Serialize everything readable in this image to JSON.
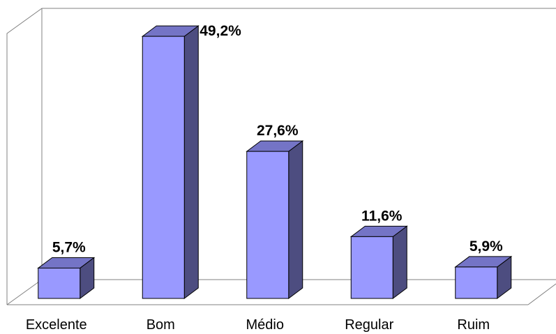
{
  "chart_data": {
    "type": "bar",
    "style": "3d-column",
    "title": "",
    "xlabel": "",
    "ylabel": "",
    "categories": [
      "Excelente",
      "Bom",
      "Médio",
      "Regular",
      "Ruim"
    ],
    "values": [
      5.7,
      49.2,
      27.6,
      11.6,
      5.9
    ],
    "data_labels": [
      "5,7%",
      "49,2%",
      "27,6%",
      "11,6%",
      "5,9%"
    ],
    "unit": "%",
    "ylim": [
      0,
      50
    ],
    "grid": false,
    "legend": "none",
    "colors": {
      "bar_front": "#9999ff",
      "bar_top": "#7474c6",
      "bar_side": "#4d4d80",
      "bar_stroke": "#000000",
      "wall_line": "#808080"
    }
  }
}
